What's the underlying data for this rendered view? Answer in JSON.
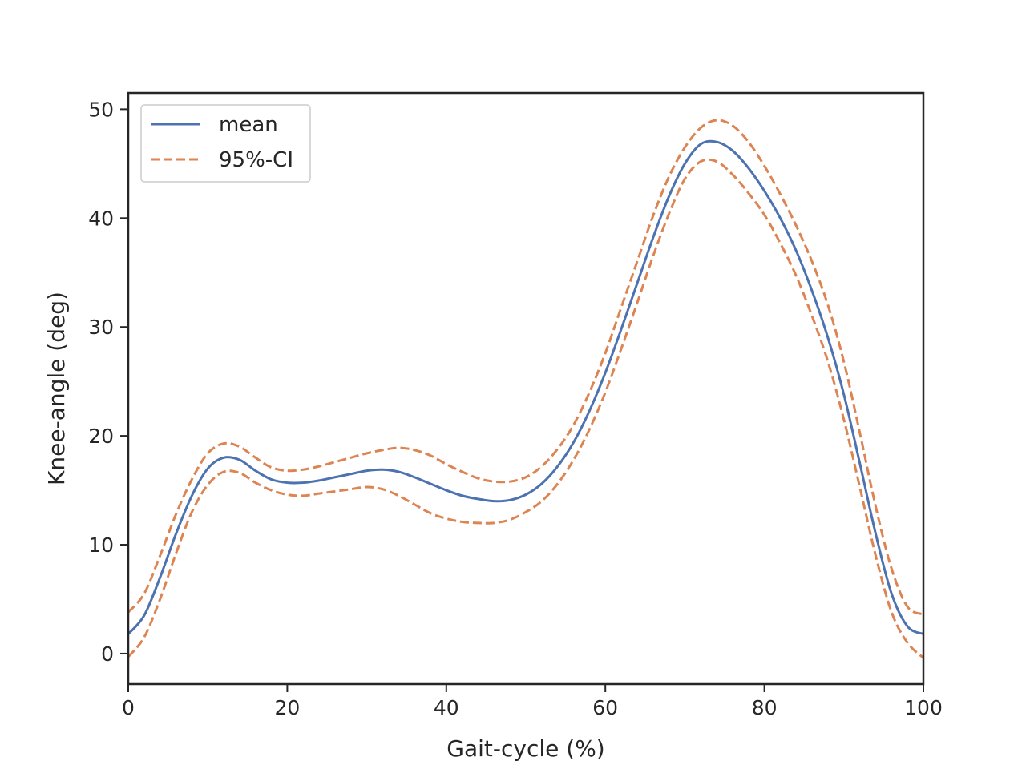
{
  "chart_data": {
    "type": "line",
    "title": "",
    "xlabel": "Gait-cycle (%)",
    "ylabel": "Knee-angle (deg)",
    "xlim": [
      0,
      100
    ],
    "ylim": [
      -2.8,
      51.5
    ],
    "xticks": [
      0,
      20,
      40,
      60,
      80,
      100
    ],
    "yticks": [
      0,
      10,
      20,
      30,
      40,
      50
    ],
    "grid": false,
    "legend_position": "top-left",
    "x": [
      0,
      2,
      4,
      6,
      8,
      10,
      12,
      14,
      16,
      18,
      20,
      22,
      24,
      26,
      28,
      30,
      32,
      34,
      36,
      38,
      40,
      42,
      44,
      46,
      48,
      50,
      52,
      54,
      56,
      58,
      60,
      62,
      64,
      66,
      68,
      70,
      72,
      74,
      76,
      78,
      80,
      82,
      84,
      86,
      88,
      90,
      92,
      94,
      96,
      98,
      100
    ],
    "series": [
      {
        "name": "mean",
        "style": "solid",
        "color": "#4c72b0",
        "values": [
          1.8,
          3.5,
          7.0,
          11.0,
          14.5,
          17.0,
          18.0,
          17.8,
          16.8,
          16.0,
          15.7,
          15.7,
          15.9,
          16.2,
          16.5,
          16.8,
          16.9,
          16.7,
          16.2,
          15.6,
          15.0,
          14.5,
          14.2,
          14.0,
          14.1,
          14.6,
          15.6,
          17.2,
          19.4,
          22.3,
          25.8,
          29.8,
          34.0,
          38.2,
          42.0,
          45.0,
          46.8,
          47.0,
          46.2,
          44.6,
          42.5,
          40.0,
          37.0,
          33.3,
          29.0,
          23.8,
          17.5,
          11.0,
          5.5,
          2.5,
          1.8
        ]
      },
      {
        "name": "95%-CI",
        "style": "dashed",
        "color": "#dd8452",
        "values": [
          3.8,
          5.5,
          9.0,
          12.8,
          16.0,
          18.4,
          19.3,
          19.0,
          18.0,
          17.1,
          16.8,
          16.9,
          17.2,
          17.6,
          18.0,
          18.4,
          18.7,
          18.9,
          18.7,
          18.2,
          17.4,
          16.7,
          16.1,
          15.8,
          15.8,
          16.2,
          17.2,
          18.8,
          21.0,
          24.0,
          27.6,
          31.8,
          36.0,
          40.2,
          43.8,
          46.5,
          48.3,
          49.0,
          48.5,
          47.0,
          44.8,
          42.2,
          39.3,
          36.0,
          32.0,
          26.8,
          20.3,
          13.5,
          7.8,
          4.3,
          3.6
        ]
      },
      {
        "name": "",
        "style": "dashed",
        "color": "#dd8452",
        "values": [
          -0.3,
          1.5,
          5.0,
          9.2,
          13.0,
          15.5,
          16.7,
          16.6,
          15.7,
          15.0,
          14.6,
          14.5,
          14.7,
          14.9,
          15.1,
          15.3,
          15.1,
          14.5,
          13.7,
          12.9,
          12.4,
          12.1,
          12.0,
          12.0,
          12.3,
          13.0,
          14.0,
          15.6,
          17.8,
          20.6,
          24.0,
          28.0,
          32.2,
          36.5,
          40.4,
          43.6,
          45.2,
          45.2,
          44.0,
          42.3,
          40.3,
          37.7,
          34.7,
          31.0,
          26.8,
          21.5,
          15.3,
          9.0,
          3.8,
          1.0,
          -0.4
        ]
      }
    ]
  }
}
